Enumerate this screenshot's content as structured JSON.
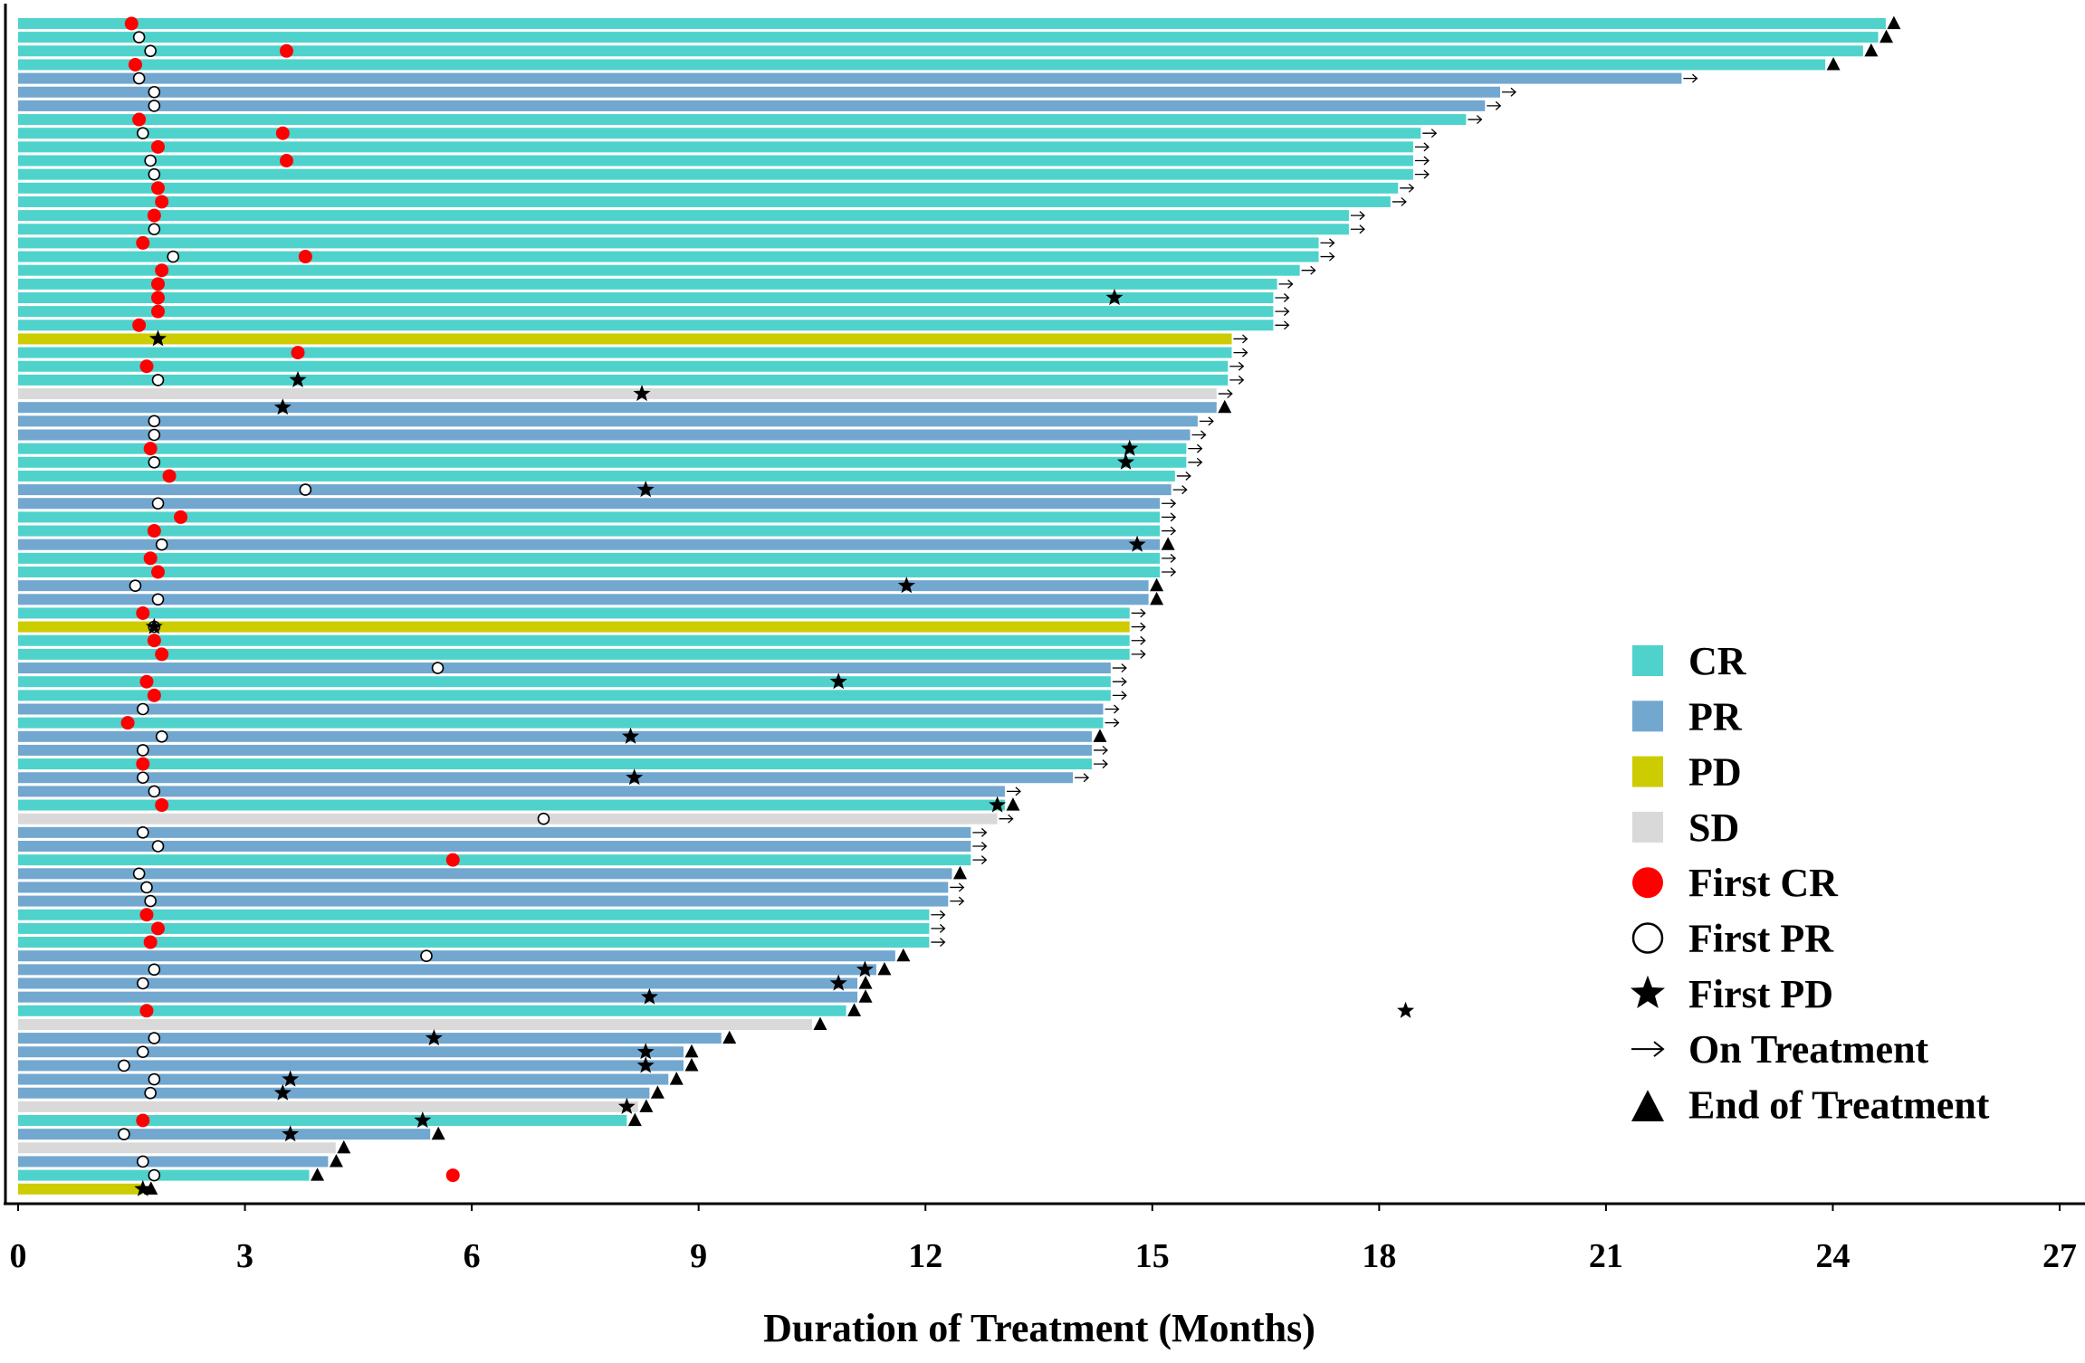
{
  "chart_data": {
    "type": "swimmer",
    "xlabel": "Duration of Treatment (Months)",
    "ylabel": "",
    "xlim": [
      0,
      27
    ],
    "xticks": [
      0,
      3,
      6,
      9,
      12,
      15,
      18,
      21,
      24,
      27
    ],
    "colors": {
      "CR": "#4fd2cc",
      "PR": "#72a7cf",
      "PD": "#cccc00",
      "SD": "#d9d9d9",
      "first_cr": "#ff0000",
      "marker": "#000000"
    },
    "legend": [
      {
        "key": "CR",
        "label": "CR",
        "kind": "square"
      },
      {
        "key": "PR",
        "label": "PR",
        "kind": "square"
      },
      {
        "key": "PD",
        "label": "PD",
        "kind": "square"
      },
      {
        "key": "SD",
        "label": "SD",
        "kind": "square"
      },
      {
        "key": "first_cr",
        "label": "First CR",
        "kind": "red-circle"
      },
      {
        "key": "first_pr",
        "label": "First PR",
        "kind": "open-circle"
      },
      {
        "key": "first_pd",
        "label": "First PD",
        "kind": "star"
      },
      {
        "key": "on_treatment",
        "label": "On Treatment",
        "kind": "arrow"
      },
      {
        "key": "end_of_treatment",
        "label": "End of Treatment",
        "kind": "triangle"
      }
    ],
    "patients": [
      {
        "resp": "CR",
        "dur": 24.7,
        "end": "end",
        "cr": 1.5
      },
      {
        "resp": "CR",
        "dur": 24.6,
        "end": "end",
        "pr": 1.6
      },
      {
        "resp": "CR",
        "dur": 24.4,
        "end": "end",
        "pr": 1.75,
        "cr": 3.55
      },
      {
        "resp": "CR",
        "dur": 23.9,
        "end": "end",
        "cr": 1.55
      },
      {
        "resp": "PR",
        "dur": 22.0,
        "end": "arrow",
        "pr": 1.6
      },
      {
        "resp": "PR",
        "dur": 19.6,
        "end": "arrow",
        "pr": 1.8
      },
      {
        "resp": "PR",
        "dur": 19.4,
        "end": "arrow",
        "pr": 1.8
      },
      {
        "resp": "CR",
        "dur": 19.15,
        "end": "arrow",
        "cr": 1.6
      },
      {
        "resp": "CR",
        "dur": 18.55,
        "end": "arrow",
        "pr": 1.65,
        "cr": 3.5
      },
      {
        "resp": "CR",
        "dur": 18.45,
        "end": "arrow",
        "cr": 1.85
      },
      {
        "resp": "CR",
        "dur": 18.45,
        "end": "arrow",
        "pr": 1.75,
        "cr": 3.55
      },
      {
        "resp": "CR",
        "dur": 18.45,
        "end": "arrow",
        "pr": 1.8
      },
      {
        "resp": "CR",
        "dur": 18.25,
        "end": "arrow",
        "cr": 1.85
      },
      {
        "resp": "CR",
        "dur": 18.15,
        "end": "arrow",
        "cr": 1.9
      },
      {
        "resp": "CR",
        "dur": 17.6,
        "end": "arrow",
        "cr": 1.8
      },
      {
        "resp": "CR",
        "dur": 17.6,
        "end": "arrow",
        "pr": 1.8
      },
      {
        "resp": "CR",
        "dur": 17.2,
        "end": "arrow",
        "cr": 1.65
      },
      {
        "resp": "CR",
        "dur": 17.2,
        "end": "arrow",
        "pr": 2.05,
        "cr": 3.8
      },
      {
        "resp": "CR",
        "dur": 16.95,
        "end": "arrow",
        "cr": 1.9
      },
      {
        "resp": "CR",
        "dur": 16.65,
        "end": "arrow",
        "cr": 1.85
      },
      {
        "resp": "CR",
        "dur": 16.6,
        "end": "arrow",
        "cr": 1.85,
        "pd": 14.5
      },
      {
        "resp": "CR",
        "dur": 16.6,
        "end": "arrow",
        "cr": 1.85
      },
      {
        "resp": "CR",
        "dur": 16.6,
        "end": "arrow",
        "cr": 1.6
      },
      {
        "resp": "PD",
        "dur": 16.05,
        "end": "arrow",
        "pd": 1.85
      },
      {
        "resp": "CR",
        "dur": 16.05,
        "end": "arrow",
        "cr": 3.7
      },
      {
        "resp": "CR",
        "dur": 16.0,
        "end": "arrow",
        "cr": 1.7
      },
      {
        "resp": "CR",
        "dur": 16.0,
        "end": "arrow",
        "pr": 1.85,
        "pd": 3.7
      },
      {
        "resp": "SD",
        "dur": 15.85,
        "end": "arrow",
        "pd": 8.25
      },
      {
        "resp": "PR",
        "dur": 15.85,
        "end": "end",
        "pd": 3.5
      },
      {
        "resp": "PR",
        "dur": 15.6,
        "end": "arrow",
        "pr": 1.8
      },
      {
        "resp": "PR",
        "dur": 15.5,
        "end": "arrow",
        "pr": 1.8
      },
      {
        "resp": "CR",
        "dur": 15.45,
        "end": "arrow",
        "cr": 1.75,
        "pd": 14.7
      },
      {
        "resp": "CR",
        "dur": 15.45,
        "end": "arrow",
        "pr": 1.8,
        "pd": 14.65
      },
      {
        "resp": "CR",
        "dur": 15.3,
        "end": "arrow",
        "cr": 2.0
      },
      {
        "resp": "PR",
        "dur": 15.25,
        "end": "arrow",
        "pr": 3.8,
        "pd": 8.3
      },
      {
        "resp": "PR",
        "dur": 15.1,
        "end": "arrow",
        "pr": 1.85
      },
      {
        "resp": "CR",
        "dur": 15.1,
        "end": "arrow",
        "cr": 2.15
      },
      {
        "resp": "CR",
        "dur": 15.1,
        "end": "arrow",
        "cr": 1.8
      },
      {
        "resp": "PR",
        "dur": 15.1,
        "end": "end",
        "pr": 1.9,
        "pd": 14.8
      },
      {
        "resp": "CR",
        "dur": 15.1,
        "end": "arrow",
        "cr": 1.75
      },
      {
        "resp": "CR",
        "dur": 15.1,
        "end": "arrow",
        "cr": 1.85
      },
      {
        "resp": "PR",
        "dur": 14.95,
        "end": "end",
        "pr": 1.55,
        "pd": 11.75
      },
      {
        "resp": "PR",
        "dur": 14.95,
        "end": "end",
        "pr": 1.85
      },
      {
        "resp": "CR",
        "dur": 14.7,
        "end": "arrow",
        "cr": 1.65
      },
      {
        "resp": "PD",
        "dur": 14.7,
        "end": "arrow",
        "pr": 1.8,
        "pd": 1.8
      },
      {
        "resp": "CR",
        "dur": 14.7,
        "end": "arrow",
        "cr": 1.8
      },
      {
        "resp": "CR",
        "dur": 14.7,
        "end": "arrow",
        "cr": 1.9
      },
      {
        "resp": "PR",
        "dur": 14.45,
        "end": "arrow",
        "pr": 5.55
      },
      {
        "resp": "CR",
        "dur": 14.45,
        "end": "arrow",
        "cr": 1.7,
        "pd": 10.85
      },
      {
        "resp": "CR",
        "dur": 14.45,
        "end": "arrow",
        "cr": 1.8
      },
      {
        "resp": "PR",
        "dur": 14.35,
        "end": "arrow",
        "pr": 1.65
      },
      {
        "resp": "CR",
        "dur": 14.35,
        "end": "arrow",
        "cr": 1.45
      },
      {
        "resp": "PR",
        "dur": 14.2,
        "end": "end",
        "pr": 1.9,
        "pd": 8.1
      },
      {
        "resp": "PR",
        "dur": 14.2,
        "end": "arrow",
        "pr": 1.65
      },
      {
        "resp": "CR",
        "dur": 14.2,
        "end": "arrow",
        "cr": 1.65
      },
      {
        "resp": "PR",
        "dur": 13.95,
        "end": "arrow",
        "pr": 1.65,
        "pd": 8.15
      },
      {
        "resp": "PR",
        "dur": 13.05,
        "end": "arrow",
        "pr": 1.8
      },
      {
        "resp": "CR",
        "dur": 13.05,
        "end": "end",
        "cr": 1.9,
        "pd": 12.95
      },
      {
        "resp": "SD",
        "dur": 12.95,
        "end": "arrow",
        "pr": 6.95
      },
      {
        "resp": "PR",
        "dur": 12.6,
        "end": "arrow",
        "pr": 1.65
      },
      {
        "resp": "PR",
        "dur": 12.6,
        "end": "arrow",
        "pr": 1.85
      },
      {
        "resp": "CR",
        "dur": 12.6,
        "end": "arrow",
        "cr": 5.75
      },
      {
        "resp": "PR",
        "dur": 12.35,
        "end": "end",
        "pr": 1.6
      },
      {
        "resp": "PR",
        "dur": 12.3,
        "end": "arrow",
        "pr": 1.7
      },
      {
        "resp": "PR",
        "dur": 12.3,
        "end": "arrow",
        "pr": 1.75
      },
      {
        "resp": "CR",
        "dur": 12.05,
        "end": "arrow",
        "cr": 1.7
      },
      {
        "resp": "CR",
        "dur": 12.05,
        "end": "arrow",
        "cr": 1.85
      },
      {
        "resp": "CR",
        "dur": 12.05,
        "end": "arrow",
        "cr": 1.75
      },
      {
        "resp": "PR",
        "dur": 11.6,
        "end": "end",
        "pr": 5.4
      },
      {
        "resp": "PR",
        "dur": 11.35,
        "end": "end",
        "pr": 1.8,
        "pd": 11.2
      },
      {
        "resp": "PR",
        "dur": 11.1,
        "end": "end",
        "pr": 1.65,
        "pd": 10.85
      },
      {
        "resp": "PR",
        "dur": 11.1,
        "end": "end",
        "pd": 8.35
      },
      {
        "resp": "CR",
        "dur": 10.95,
        "end": "end",
        "cr": 1.7
      },
      {
        "resp": "SD",
        "dur": 10.5,
        "end": "end"
      },
      {
        "resp": "PR",
        "dur": 9.3,
        "end": "end",
        "pr": 1.8,
        "pd": 5.5
      },
      {
        "resp": "PR",
        "dur": 8.8,
        "end": "end",
        "pr": 1.65,
        "pd": 8.3
      },
      {
        "resp": "PR",
        "dur": 8.8,
        "end": "end",
        "pr": 1.4,
        "pd": 8.3
      },
      {
        "resp": "PR",
        "dur": 8.6,
        "end": "end",
        "pr": 1.8,
        "pd": 3.6
      },
      {
        "resp": "PR",
        "dur": 8.35,
        "end": "end",
        "pr": 1.75,
        "pd": 3.5
      },
      {
        "resp": "SD",
        "dur": 8.2,
        "end": "end",
        "pd": 8.05
      },
      {
        "resp": "CR",
        "dur": 8.05,
        "end": "end",
        "cr": 1.65,
        "pd": 5.35
      },
      {
        "resp": "PR",
        "dur": 5.45,
        "end": "end",
        "pr": 1.4,
        "pd": 3.6
      },
      {
        "resp": "SD",
        "dur": 4.2,
        "end": "end"
      },
      {
        "resp": "PR",
        "dur": 4.1,
        "end": "end",
        "pr": 1.65
      },
      {
        "resp": "CR",
        "dur": 3.85,
        "end": "end",
        "pr": 1.8,
        "cr": 5.75
      },
      {
        "resp": "PD",
        "dur": 1.65,
        "end": "end",
        "pd": 1.65
      }
    ],
    "extra_markers": [
      {
        "kind": "star",
        "x": 18.35,
        "row": 72
      }
    ]
  }
}
